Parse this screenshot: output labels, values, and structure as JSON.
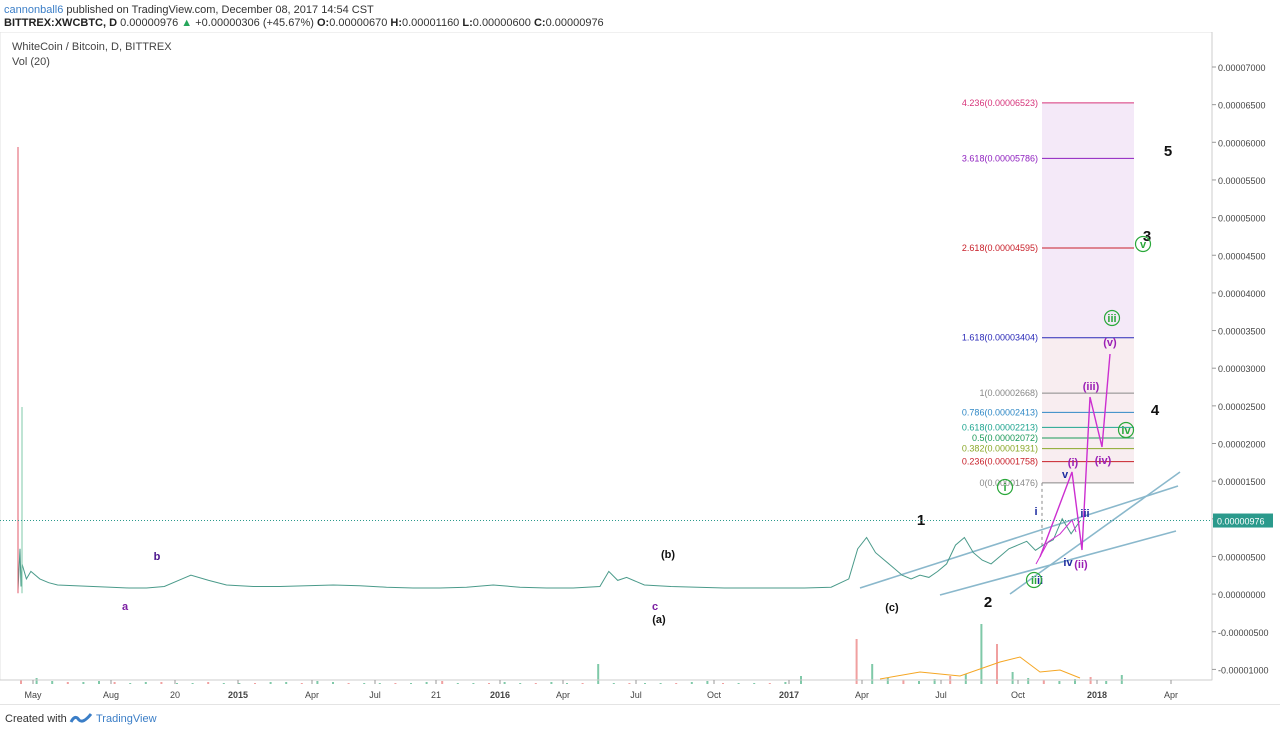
{
  "header": {
    "author": "cannonball6",
    "published": "published on TradingView.com, December 08, 2017 14:54 CST",
    "symbol": "BITTREX:XWCBTC, D",
    "last": "0.00000976",
    "arrow": "▲",
    "change": "+0.00000306 (+45.67%)",
    "o_label": "O:",
    "o_value": "0.00000670",
    "h_label": "H:",
    "h_value": "0.00001160",
    "l_label": "L:",
    "l_value": "0.00000600",
    "c_label": "C:",
    "c_value": "0.00000976"
  },
  "footer": {
    "created_with": "Created with",
    "brand": "TradingView"
  },
  "colors": {
    "price_line": "#4a9a8a",
    "wave_purple": "#9b1fb5",
    "wave_green": "#2aa83a",
    "wave_navy": "#1c2aa0",
    "trend": "#8ab8cc",
    "last_price_bg": "#2b9a8c"
  },
  "chart_data": {
    "type": "line",
    "title": "WhiteCoin / Bitcoin, D, BITTREX",
    "subtitle": "Vol (20)",
    "ylim": [
      -1.25e-05,
      8.5e-06
    ],
    "x_ticks": [
      "May",
      "Aug",
      "20",
      "2015",
      "Apr",
      "Jul",
      "21",
      "2016",
      "Apr",
      "Jul",
      "Oct",
      "2017",
      "Apr",
      "Jul",
      "Oct",
      "2018",
      "Apr"
    ],
    "x_tick_bold": [
      "2015",
      "2016",
      "2017",
      "2018"
    ],
    "y_ticks": [
      "0.00007000",
      "0.00006500",
      "0.00006000",
      "0.00005500",
      "0.00005000",
      "0.00004500",
      "0.00004000",
      "0.00003500",
      "0.00003000",
      "0.00002500",
      "0.00002000",
      "0.00001500",
      "0.00001000",
      "0.00000500",
      "0.00000000",
      "-0.00000500",
      "-0.00001000"
    ],
    "last_price": "0.00000976",
    "price_series": [
      [
        0,
        5e-07
      ],
      [
        1,
        6e-06
      ],
      [
        1.5,
        1e-06
      ],
      [
        2,
        4e-06
      ],
      [
        2.5,
        2e-06
      ],
      [
        3,
        3e-06
      ],
      [
        4,
        2e-06
      ],
      [
        5,
        1.5e-06
      ],
      [
        6,
        1.2e-06
      ],
      [
        8,
        1.1e-06
      ],
      [
        10,
        1e-06
      ],
      [
        12,
        9e-07
      ],
      [
        14,
        8e-07
      ],
      [
        16,
        8e-07
      ],
      [
        18,
        1e-06
      ],
      [
        20,
        2e-06
      ],
      [
        21,
        2.5e-06
      ],
      [
        23,
        1.8e-06
      ],
      [
        25,
        1.2e-06
      ],
      [
        28,
        1e-06
      ],
      [
        31,
        1e-06
      ],
      [
        34,
        1.1e-06
      ],
      [
        37,
        1.2e-06
      ],
      [
        40,
        1.1e-06
      ],
      [
        43,
        9e-07
      ],
      [
        46,
        8e-07
      ],
      [
        49,
        8e-07
      ],
      [
        52,
        9e-07
      ],
      [
        55,
        1.2e-06
      ],
      [
        58,
        9e-07
      ],
      [
        61,
        8e-07
      ],
      [
        64,
        8e-07
      ],
      [
        67,
        1e-06
      ],
      [
        68,
        3e-06
      ],
      [
        69,
        1.8e-06
      ],
      [
        70,
        2.2e-06
      ],
      [
        72,
        1.2e-06
      ],
      [
        75,
        1e-06
      ],
      [
        78,
        9e-07
      ],
      [
        81,
        8e-07
      ],
      [
        84,
        8e-07
      ],
      [
        87,
        8e-07
      ],
      [
        90,
        8e-07
      ],
      [
        93,
        9e-07
      ],
      [
        95,
        2e-06
      ],
      [
        96,
        6e-06
      ],
      [
        97,
        7.5e-06
      ],
      [
        98,
        5.5e-06
      ],
      [
        99,
        4.5e-06
      ],
      [
        100,
        3.5e-06
      ],
      [
        101,
        2.5e-06
      ],
      [
        102,
        2e-06
      ],
      [
        103,
        2.5e-06
      ],
      [
        104,
        2.2e-06
      ],
      [
        105,
        3e-06
      ],
      [
        106,
        4e-06
      ],
      [
        107,
        6.5e-06
      ],
      [
        108,
        7.5e-06
      ],
      [
        109,
        5.5e-06
      ],
      [
        110,
        4.5e-06
      ],
      [
        111,
        4e-06
      ],
      [
        112,
        5e-06
      ],
      [
        113,
        6e-06
      ],
      [
        114,
        6.5e-06
      ],
      [
        115,
        7e-06
      ],
      [
        116,
        5.8e-06
      ],
      [
        117,
        6.6e-06
      ],
      [
        118,
        7.2e-06
      ],
      [
        119,
        1e-05
      ],
      [
        120,
        8e-06
      ],
      [
        121,
        9.7e-06
      ]
    ],
    "fib_levels": [
      {
        "label": "4.236(0.00006523)",
        "value": 6.523e-05,
        "color": "#d6337a"
      },
      {
        "label": "3.618(0.00005786)",
        "value": 5.786e-05,
        "color": "#8e1fbf"
      },
      {
        "label": "2.618(0.00004595)",
        "value": 4.595e-05,
        "color": "#c8202a"
      },
      {
        "label": "1.618(0.00003404)",
        "value": 3.404e-05,
        "color": "#2a2ab8"
      },
      {
        "label": "1(0.00002668)",
        "value": 2.668e-05,
        "color": "#888888"
      },
      {
        "label": "0.786(0.00002413)",
        "value": 2.413e-05,
        "color": "#2f88c6"
      },
      {
        "label": "0.618(0.00002213)",
        "value": 2.213e-05,
        "color": "#1fa590"
      },
      {
        "label": "0.5(0.00002072)",
        "value": 2.072e-05,
        "color": "#1c9a5a"
      },
      {
        "label": "0.382(0.00001931)",
        "value": 1.931e-05,
        "color": "#8aa82a"
      },
      {
        "label": "0.236(0.00001758)",
        "value": 1.758e-05,
        "color": "#c8202a"
      },
      {
        "label": "0(0.00001476)",
        "value": 1.476e-05,
        "color": "#888888"
      }
    ],
    "wave_labels": [
      {
        "text": "a",
        "color": "#7b1fa2"
      },
      {
        "text": "b",
        "color": "#4a148c"
      },
      {
        "text": "c",
        "color": "#7b1fa2"
      },
      {
        "text": "(a)",
        "color": "#111111"
      },
      {
        "text": "(b)",
        "color": "#111111"
      },
      {
        "text": "(c)",
        "color": "#111111"
      },
      {
        "text": "1",
        "color": "#111111"
      },
      {
        "text": "2",
        "color": "#111111"
      },
      {
        "text": "3",
        "color": "#111111"
      },
      {
        "text": "4",
        "color": "#111111"
      },
      {
        "text": "5",
        "color": "#111111"
      },
      {
        "text": "i",
        "color": "#1c2aa0"
      },
      {
        "text": "ii",
        "color": "#1c2aa0"
      },
      {
        "text": "iii",
        "color": "#1c2aa0"
      },
      {
        "text": "iv",
        "color": "#1c2aa0"
      },
      {
        "text": "v",
        "color": "#1c2aa0"
      },
      {
        "text": "(i)",
        "color": "#9b1fb5"
      },
      {
        "text": "(ii)",
        "color": "#9b1fb5"
      },
      {
        "text": "(iii)",
        "color": "#9b1fb5"
      },
      {
        "text": "(iv)",
        "color": "#9b1fb5"
      },
      {
        "text": "(v)",
        "color": "#9b1fb5"
      },
      {
        "text": "i",
        "color": "#2aa83a"
      },
      {
        "text": "ii",
        "color": "#2aa83a"
      },
      {
        "text": "iii",
        "color": "#2aa83a"
      },
      {
        "text": "iv",
        "color": "#2aa83a"
      },
      {
        "text": "v",
        "color": "#2aa83a"
      }
    ]
  }
}
